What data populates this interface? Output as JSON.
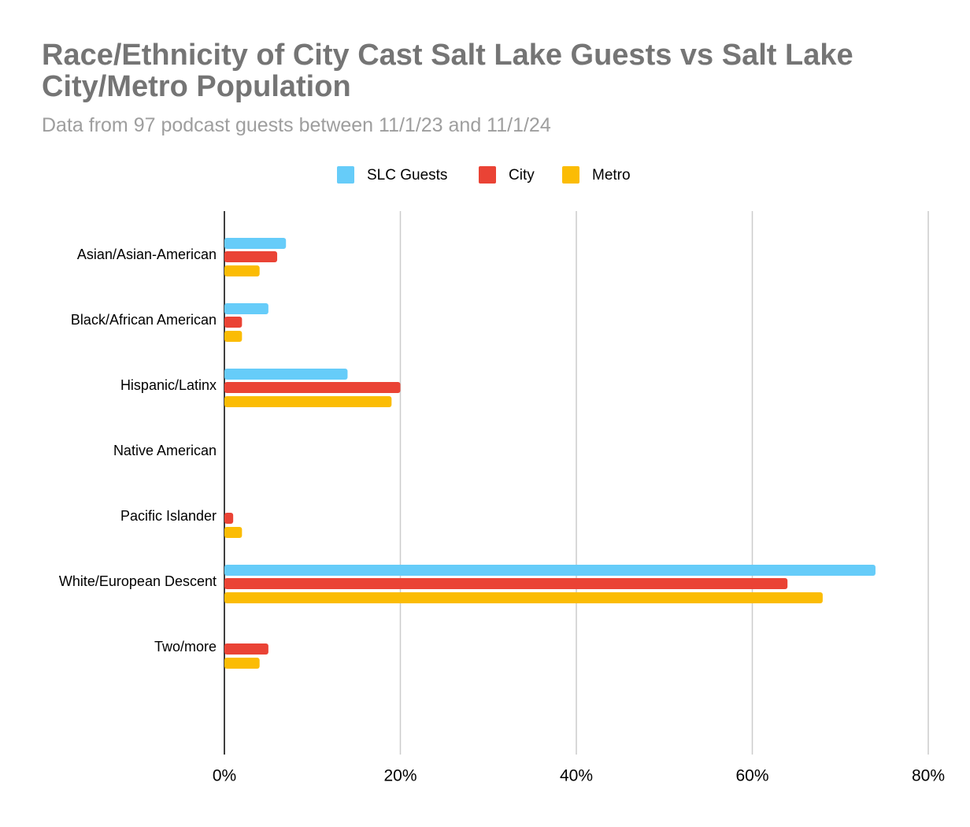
{
  "chart_data": {
    "type": "bar",
    "orientation": "horizontal",
    "title": "Race/Ethnicity of City Cast Salt Lake Guests vs Salt Lake City/Metro Population",
    "subtitle": "Data from 97 podcast guests between 11/1/23 and 11/1/24",
    "categories": [
      "Asian/Asian-American",
      "Black/African American",
      "Hispanic/Latinx",
      "Native American",
      "Pacific Islander",
      "White/European Descent",
      "Two/more"
    ],
    "series": [
      {
        "name": "SLC Guests",
        "color": "#66ccf9",
        "values": [
          7,
          5,
          14,
          0,
          0,
          74,
          0
        ]
      },
      {
        "name": "City",
        "color": "#ea4335",
        "values": [
          6,
          2,
          20,
          0,
          1,
          64,
          5
        ]
      },
      {
        "name": "Metro",
        "color": "#fbbc04",
        "values": [
          4,
          2,
          19,
          0,
          2,
          68,
          4
        ]
      }
    ],
    "xlim": [
      0,
      80
    ],
    "xticks": [
      {
        "value": 0,
        "label": "0%"
      },
      {
        "value": 20,
        "label": "20%"
      },
      {
        "value": 40,
        "label": "40%"
      },
      {
        "value": 60,
        "label": "60%"
      },
      {
        "value": 80,
        "label": "80%"
      }
    ],
    "grid": true,
    "legend": "top"
  }
}
